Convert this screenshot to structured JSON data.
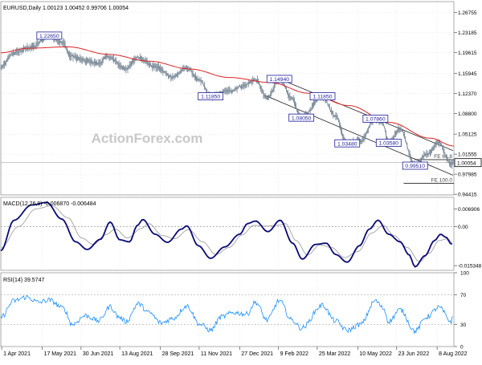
{
  "chart_data": [
    {
      "panel": "price",
      "type": "line",
      "title": "EURUSD,Daily  1.00123 1.00452 0.99706 1.00054",
      "watermark": "ActionForex.com",
      "ylim": [
        0.943,
        1.287
      ],
      "y_ticks": [
        "1.26755",
        "1.23185",
        "1.19615",
        "1.15945",
        "1.12370",
        "1.08800",
        "1.05125",
        "1.01555",
        "0.97985",
        "0.94415"
      ],
      "y_tick_values": [
        1.26755,
        1.23185,
        1.19615,
        1.15945,
        1.1237,
        1.088,
        1.05125,
        1.01555,
        0.97985,
        0.94415
      ],
      "last_price": "1.00054",
      "last_price_value": 1.00054,
      "x_range": [
        "2021-03-31",
        "2022-08-27"
      ],
      "x_ticks": [
        {
          "date": "2021-04-01",
          "label": "1 Apr 2021"
        },
        {
          "date": "2021-05-17",
          "label": "17 May 2021"
        },
        {
          "date": "2021-06-30",
          "label": "30 Jun 2021"
        },
        {
          "date": "2021-08-13",
          "label": "13 Aug 2021"
        },
        {
          "date": "2021-09-28",
          "label": "28 Sep 2021"
        },
        {
          "date": "2021-11-11",
          "label": "11 Nov 2021"
        },
        {
          "date": "2021-12-27",
          "label": "27 Dec 2021"
        },
        {
          "date": "2022-02-09",
          "label": "9 Feb 2022"
        },
        {
          "date": "2022-03-25",
          "label": "25 Mar 2022"
        },
        {
          "date": "2022-05-10",
          "label": "10 May 2022"
        },
        {
          "date": "2022-06-23",
          "label": "23 Jun 2022"
        },
        {
          "date": "2022-08-08",
          "label": "8 Aug 2022"
        }
      ],
      "price_anchors": [
        [
          "2021-03-31",
          1.17
        ],
        [
          "2021-04-15",
          1.196
        ],
        [
          "2021-05-05",
          1.206
        ],
        [
          "2021-05-25",
          1.2265
        ],
        [
          "2021-06-10",
          1.213
        ],
        [
          "2021-06-18",
          1.19
        ],
        [
          "2021-07-07",
          1.181
        ],
        [
          "2021-07-20",
          1.177
        ],
        [
          "2021-07-30",
          1.189
        ],
        [
          "2021-08-20",
          1.168
        ],
        [
          "2021-09-03",
          1.188
        ],
        [
          "2021-09-22",
          1.171
        ],
        [
          "2021-10-12",
          1.153
        ],
        [
          "2021-10-28",
          1.169
        ],
        [
          "2021-11-12",
          1.146
        ],
        [
          "2021-11-24",
          1.1185
        ],
        [
          "2021-12-15",
          1.128
        ],
        [
          "2021-12-31",
          1.137
        ],
        [
          "2022-01-14",
          1.148
        ],
        [
          "2022-01-27",
          1.115
        ],
        [
          "2022-02-10",
          1.1494
        ],
        [
          "2022-02-24",
          1.115
        ],
        [
          "2022-03-07",
          1.0805
        ],
        [
          "2022-03-31",
          1.1185
        ],
        [
          "2022-04-14",
          1.085
        ],
        [
          "2022-04-28",
          1.0348
        ],
        [
          "2022-05-13",
          1.039
        ],
        [
          "2022-05-30",
          1.0786
        ],
        [
          "2022-06-07",
          1.071
        ],
        [
          "2022-06-14",
          1.0358
        ],
        [
          "2022-06-27",
          1.061
        ],
        [
          "2022-07-14",
          0.9951
        ],
        [
          "2022-07-27",
          1.015
        ],
        [
          "2022-08-10",
          1.0368
        ],
        [
          "2022-08-24",
          0.9971
        ],
        [
          "2022-08-26",
          1.0005
        ]
      ],
      "moving_average": [
        [
          "2021-03-31",
          1.196
        ],
        [
          "2021-05-01",
          1.204
        ],
        [
          "2021-06-15",
          1.2065
        ],
        [
          "2021-08-01",
          1.193
        ],
        [
          "2021-09-15",
          1.181
        ],
        [
          "2021-11-01",
          1.167
        ],
        [
          "2021-12-15",
          1.152
        ],
        [
          "2022-01-31",
          1.143
        ],
        [
          "2022-03-15",
          1.124
        ],
        [
          "2022-04-30",
          1.102
        ],
        [
          "2022-06-15",
          1.072
        ],
        [
          "2022-07-31",
          1.044
        ],
        [
          "2022-08-27",
          1.03
        ]
      ],
      "channel_upper": [
        [
          "2022-02-10",
          1.1494
        ],
        [
          "2022-08-26",
          1.022
        ]
      ],
      "channel_lower": [
        [
          "2022-01-25",
          1.12
        ],
        [
          "2022-08-26",
          0.978
        ]
      ],
      "projection_lines": [
        {
          "y": 1.0058,
          "from": "2022-07-14",
          "to": "2022-08-27",
          "label": "FE 61.8"
        },
        {
          "y": 0.9635,
          "from": "2022-07-01",
          "to": "2022-08-27",
          "label": "FE 100.0"
        }
      ],
      "annotations": [
        {
          "text": "1.22650",
          "date": "2021-05-25",
          "y": 1.2265,
          "box": true
        },
        {
          "text": "1.11850",
          "date": "2021-11-24",
          "y": 1.1185,
          "box": true
        },
        {
          "text": "1.14940",
          "date": "2022-02-10",
          "y": 1.1494,
          "box": true
        },
        {
          "text": "1.08050",
          "date": "2022-03-07",
          "y": 1.0805,
          "box": true
        },
        {
          "text": "1.11850",
          "date": "2022-03-31",
          "y": 1.1185,
          "box": true
        },
        {
          "text": "1.03480",
          "date": "2022-04-28",
          "y": 1.0348,
          "box": true
        },
        {
          "text": "1.07860",
          "date": "2022-05-30",
          "y": 1.0786,
          "box": true
        },
        {
          "text": "1.03580",
          "date": "2022-06-14",
          "y": 1.0358,
          "box": true
        },
        {
          "text": "0.99510",
          "date": "2022-07-14",
          "y": 0.9951,
          "box": true
        }
      ],
      "colors": {
        "price": "#708090",
        "ma": "#dd2222",
        "channel": "#000000",
        "label": "#1c1c9c",
        "projection": "#000000"
      }
    },
    {
      "panel": "macd",
      "type": "line",
      "title": "MACD(12,26,9) -0.006870 -0.006484",
      "ylim": [
        -0.0172,
        0.0115
      ],
      "y_ticks": [
        "0.006906",
        "0.00",
        "-0.015348"
      ],
      "y_tick_values": [
        0.006906,
        0.0,
        -0.015348
      ],
      "current": "-0.00",
      "macd_anchors": [
        [
          "2021-03-31",
          -0.0095
        ],
        [
          "2021-04-15",
          0.0025
        ],
        [
          "2021-05-05",
          0.0085
        ],
        [
          "2021-05-22",
          0.0095
        ],
        [
          "2021-06-08",
          0.003
        ],
        [
          "2021-06-24",
          -0.006
        ],
        [
          "2021-07-07",
          -0.009
        ],
        [
          "2021-07-22",
          -0.005
        ],
        [
          "2021-08-02",
          0.0018
        ],
        [
          "2021-08-13",
          -0.0052
        ],
        [
          "2021-08-24",
          -0.006
        ],
        [
          "2021-09-02",
          0.0005
        ],
        [
          "2021-09-08",
          0.0028
        ],
        [
          "2021-09-22",
          -0.003
        ],
        [
          "2021-10-06",
          -0.0062
        ],
        [
          "2021-10-22",
          -0.001
        ],
        [
          "2021-10-28",
          0.0003
        ],
        [
          "2021-11-10",
          -0.0075
        ],
        [
          "2021-11-24",
          -0.0125
        ],
        [
          "2021-12-10",
          -0.008
        ],
        [
          "2021-12-27",
          -0.003
        ],
        [
          "2022-01-05",
          0.0012
        ],
        [
          "2022-01-14",
          0.0022
        ],
        [
          "2022-01-28",
          -0.002
        ],
        [
          "2022-02-11",
          0.0025
        ],
        [
          "2022-02-25",
          -0.0065
        ],
        [
          "2022-03-08",
          -0.0128
        ],
        [
          "2022-03-23",
          -0.007
        ],
        [
          "2022-04-04",
          -0.0065
        ],
        [
          "2022-04-15",
          -0.011
        ],
        [
          "2022-04-28",
          -0.014
        ],
        [
          "2022-05-12",
          -0.0075
        ],
        [
          "2022-05-23",
          -0.001
        ],
        [
          "2022-06-02",
          0.0025
        ],
        [
          "2022-06-14",
          -0.003
        ],
        [
          "2022-06-27",
          -0.006
        ],
        [
          "2022-07-07",
          -0.011
        ],
        [
          "2022-07-14",
          -0.0158
        ],
        [
          "2022-07-25",
          -0.0115
        ],
        [
          "2022-08-05",
          -0.0055
        ],
        [
          "2022-08-12",
          -0.003
        ],
        [
          "2022-08-18",
          -0.0042
        ],
        [
          "2022-08-24",
          -0.0068
        ],
        [
          "2022-08-26",
          -0.0069
        ]
      ],
      "signal_anchors": [
        [
          "2021-03-31",
          -0.0085
        ],
        [
          "2021-04-20",
          0.0
        ],
        [
          "2021-05-10",
          0.007
        ],
        [
          "2021-05-28",
          0.0082
        ],
        [
          "2021-06-15",
          0.0035
        ],
        [
          "2021-07-01",
          -0.0045
        ],
        [
          "2021-07-14",
          -0.007
        ],
        [
          "2021-07-28",
          -0.0032
        ],
        [
          "2021-08-08",
          -0.001
        ],
        [
          "2021-08-22",
          -0.0045
        ],
        [
          "2021-09-06",
          -0.0008
        ],
        [
          "2021-09-15",
          0.0012
        ],
        [
          "2021-09-30",
          -0.0035
        ],
        [
          "2021-10-14",
          -0.0048
        ],
        [
          "2021-10-30",
          -0.0012
        ],
        [
          "2021-11-15",
          -0.006
        ],
        [
          "2021-11-30",
          -0.011
        ],
        [
          "2021-12-15",
          -0.0082
        ],
        [
          "2021-12-30",
          -0.0032
        ],
        [
          "2022-01-12",
          0.0005
        ],
        [
          "2022-01-25",
          0.0002
        ],
        [
          "2022-02-08",
          0.0005
        ],
        [
          "2022-02-17",
          0.0012
        ],
        [
          "2022-03-01",
          -0.0055
        ],
        [
          "2022-03-14",
          -0.0112
        ],
        [
          "2022-03-28",
          -0.0072
        ],
        [
          "2022-04-10",
          -0.0082
        ],
        [
          "2022-04-25",
          -0.0122
        ],
        [
          "2022-05-10",
          -0.0098
        ],
        [
          "2022-05-26",
          -0.0025
        ],
        [
          "2022-06-08",
          0.0005
        ],
        [
          "2022-06-20",
          -0.0035
        ],
        [
          "2022-07-05",
          -0.0082
        ],
        [
          "2022-07-19",
          -0.0138
        ],
        [
          "2022-07-30",
          -0.0105
        ],
        [
          "2022-08-10",
          -0.0055
        ],
        [
          "2022-08-20",
          -0.0048
        ],
        [
          "2022-08-26",
          -0.0065
        ]
      ],
      "colors": {
        "macd": "#0a0a78",
        "signal": "#a0a0a0",
        "zero": "#888888"
      }
    },
    {
      "panel": "rsi",
      "type": "line",
      "title": "RSI(14) 39.5747",
      "ylim": [
        0,
        100
      ],
      "y_ticks": [
        "100",
        "70",
        "30",
        "0"
      ],
      "y_tick_values": [
        100,
        70,
        30,
        0
      ],
      "rsi_anchors": [
        [
          "2021-03-31",
          40
        ],
        [
          "2021-04-15",
          62
        ],
        [
          "2021-04-29",
          67
        ],
        [
          "2021-05-13",
          60
        ],
        [
          "2021-05-25",
          63
        ],
        [
          "2021-06-10",
          52
        ],
        [
          "2021-06-20",
          30
        ],
        [
          "2021-07-05",
          42
        ],
        [
          "2021-07-20",
          35
        ],
        [
          "2021-08-02",
          54
        ],
        [
          "2021-08-12",
          40
        ],
        [
          "2021-08-20",
          34
        ],
        [
          "2021-09-03",
          58
        ],
        [
          "2021-09-15",
          46
        ],
        [
          "2021-09-29",
          32
        ],
        [
          "2021-10-12",
          38
        ],
        [
          "2021-10-28",
          55
        ],
        [
          "2021-11-12",
          30
        ],
        [
          "2021-11-24",
          22
        ],
        [
          "2021-12-06",
          40
        ],
        [
          "2021-12-20",
          46
        ],
        [
          "2022-01-04",
          44
        ],
        [
          "2022-01-14",
          60
        ],
        [
          "2022-01-27",
          36
        ],
        [
          "2022-02-10",
          62
        ],
        [
          "2022-02-24",
          36
        ],
        [
          "2022-03-07",
          25
        ],
        [
          "2022-03-31",
          56
        ],
        [
          "2022-04-14",
          35
        ],
        [
          "2022-04-28",
          22
        ],
        [
          "2022-05-13",
          30
        ],
        [
          "2022-05-30",
          62
        ],
        [
          "2022-06-08",
          52
        ],
        [
          "2022-06-14",
          34
        ],
        [
          "2022-06-27",
          50
        ],
        [
          "2022-07-14",
          21
        ],
        [
          "2022-07-27",
          40
        ],
        [
          "2022-08-10",
          53
        ],
        [
          "2022-08-24",
          34
        ],
        [
          "2022-08-26",
          40
        ]
      ],
      "colors": {
        "rsi": "#1e90ff",
        "level": "#aaaaaa"
      }
    }
  ]
}
